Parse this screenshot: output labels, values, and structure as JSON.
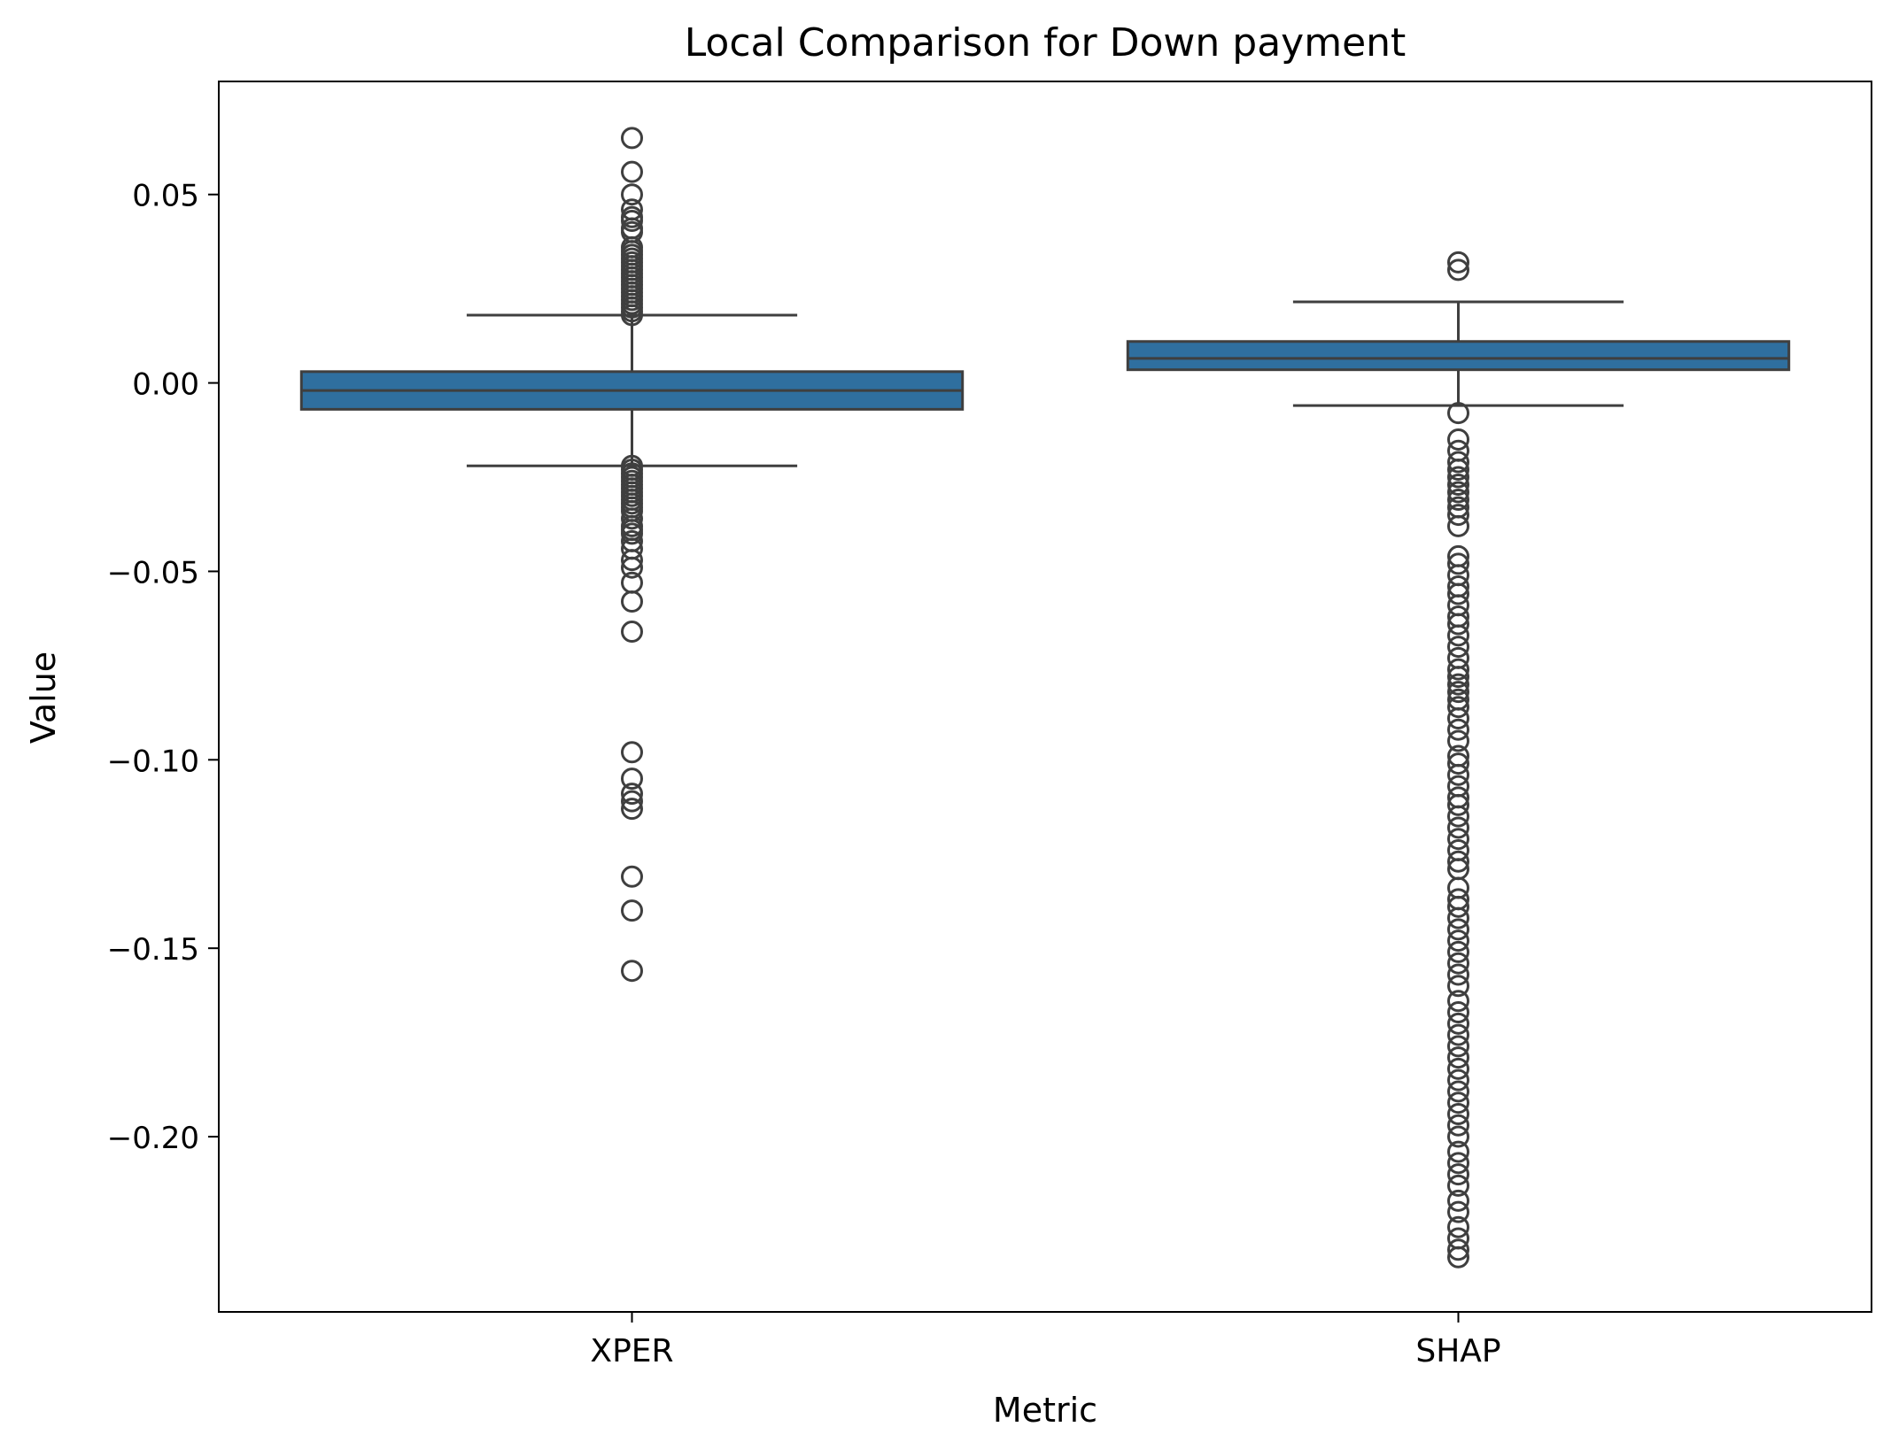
{
  "chart_data": {
    "type": "boxplot",
    "title": "Local Comparison for Down payment",
    "xlabel": "Metric",
    "ylabel": "Value",
    "ylim": [
      -0.2465,
      0.08
    ],
    "yticks": [
      0.05,
      0.0,
      -0.05,
      -0.1,
      -0.15,
      -0.2
    ],
    "ytick_labels": [
      "0.05",
      "0.00",
      "−0.05",
      "−0.10",
      "−0.15",
      "−0.20"
    ],
    "categories": [
      "XPER",
      "SHAP"
    ],
    "grid": false,
    "legend": "none",
    "colors": {
      "box_fill": "#2f6f9f",
      "line": "#3f3f3f",
      "axis": "#000000"
    },
    "boxes": [
      {
        "name": "XPER",
        "q1": -0.007,
        "median": -0.002,
        "q3": 0.003,
        "whisker_low": -0.022,
        "whisker_high": 0.018,
        "outliers": [
          0.065,
          0.056,
          0.05,
          0.046,
          0.044,
          0.043,
          0.041,
          0.04,
          0.036,
          0.035,
          0.034,
          0.033,
          0.032,
          0.031,
          0.03,
          0.029,
          0.028,
          0.027,
          0.026,
          0.025,
          0.024,
          0.023,
          0.022,
          0.021,
          0.02,
          0.019,
          0.018,
          -0.022,
          -0.023,
          -0.024,
          -0.025,
          -0.026,
          -0.027,
          -0.028,
          -0.029,
          -0.03,
          -0.031,
          -0.032,
          -0.033,
          -0.034,
          -0.036,
          -0.038,
          -0.039,
          -0.04,
          -0.042,
          -0.044,
          -0.047,
          -0.049,
          -0.053,
          -0.058,
          -0.066,
          -0.098,
          -0.105,
          -0.109,
          -0.111,
          -0.113,
          -0.131,
          -0.14,
          -0.156
        ]
      },
      {
        "name": "SHAP",
        "q1": 0.0035,
        "median": 0.0065,
        "q3": 0.011,
        "whisker_low": -0.006,
        "whisker_high": 0.0215,
        "outliers": [
          0.032,
          0.03,
          -0.008,
          -0.015,
          -0.018,
          -0.021,
          -0.023,
          -0.025,
          -0.027,
          -0.029,
          -0.031,
          -0.033,
          -0.035,
          -0.038,
          -0.046,
          -0.048,
          -0.051,
          -0.054,
          -0.056,
          -0.059,
          -0.062,
          -0.064,
          -0.067,
          -0.07,
          -0.073,
          -0.076,
          -0.078,
          -0.08,
          -0.082,
          -0.084,
          -0.086,
          -0.089,
          -0.092,
          -0.095,
          -0.099,
          -0.101,
          -0.104,
          -0.107,
          -0.11,
          -0.112,
          -0.115,
          -0.118,
          -0.121,
          -0.124,
          -0.127,
          -0.129,
          -0.134,
          -0.137,
          -0.139,
          -0.142,
          -0.145,
          -0.148,
          -0.151,
          -0.154,
          -0.157,
          -0.16,
          -0.164,
          -0.167,
          -0.17,
          -0.173,
          -0.176,
          -0.179,
          -0.182,
          -0.185,
          -0.188,
          -0.191,
          -0.194,
          -0.197,
          -0.2,
          -0.204,
          -0.207,
          -0.21,
          -0.213,
          -0.217,
          -0.22,
          -0.224,
          -0.227,
          -0.23,
          -0.232
        ]
      }
    ]
  }
}
